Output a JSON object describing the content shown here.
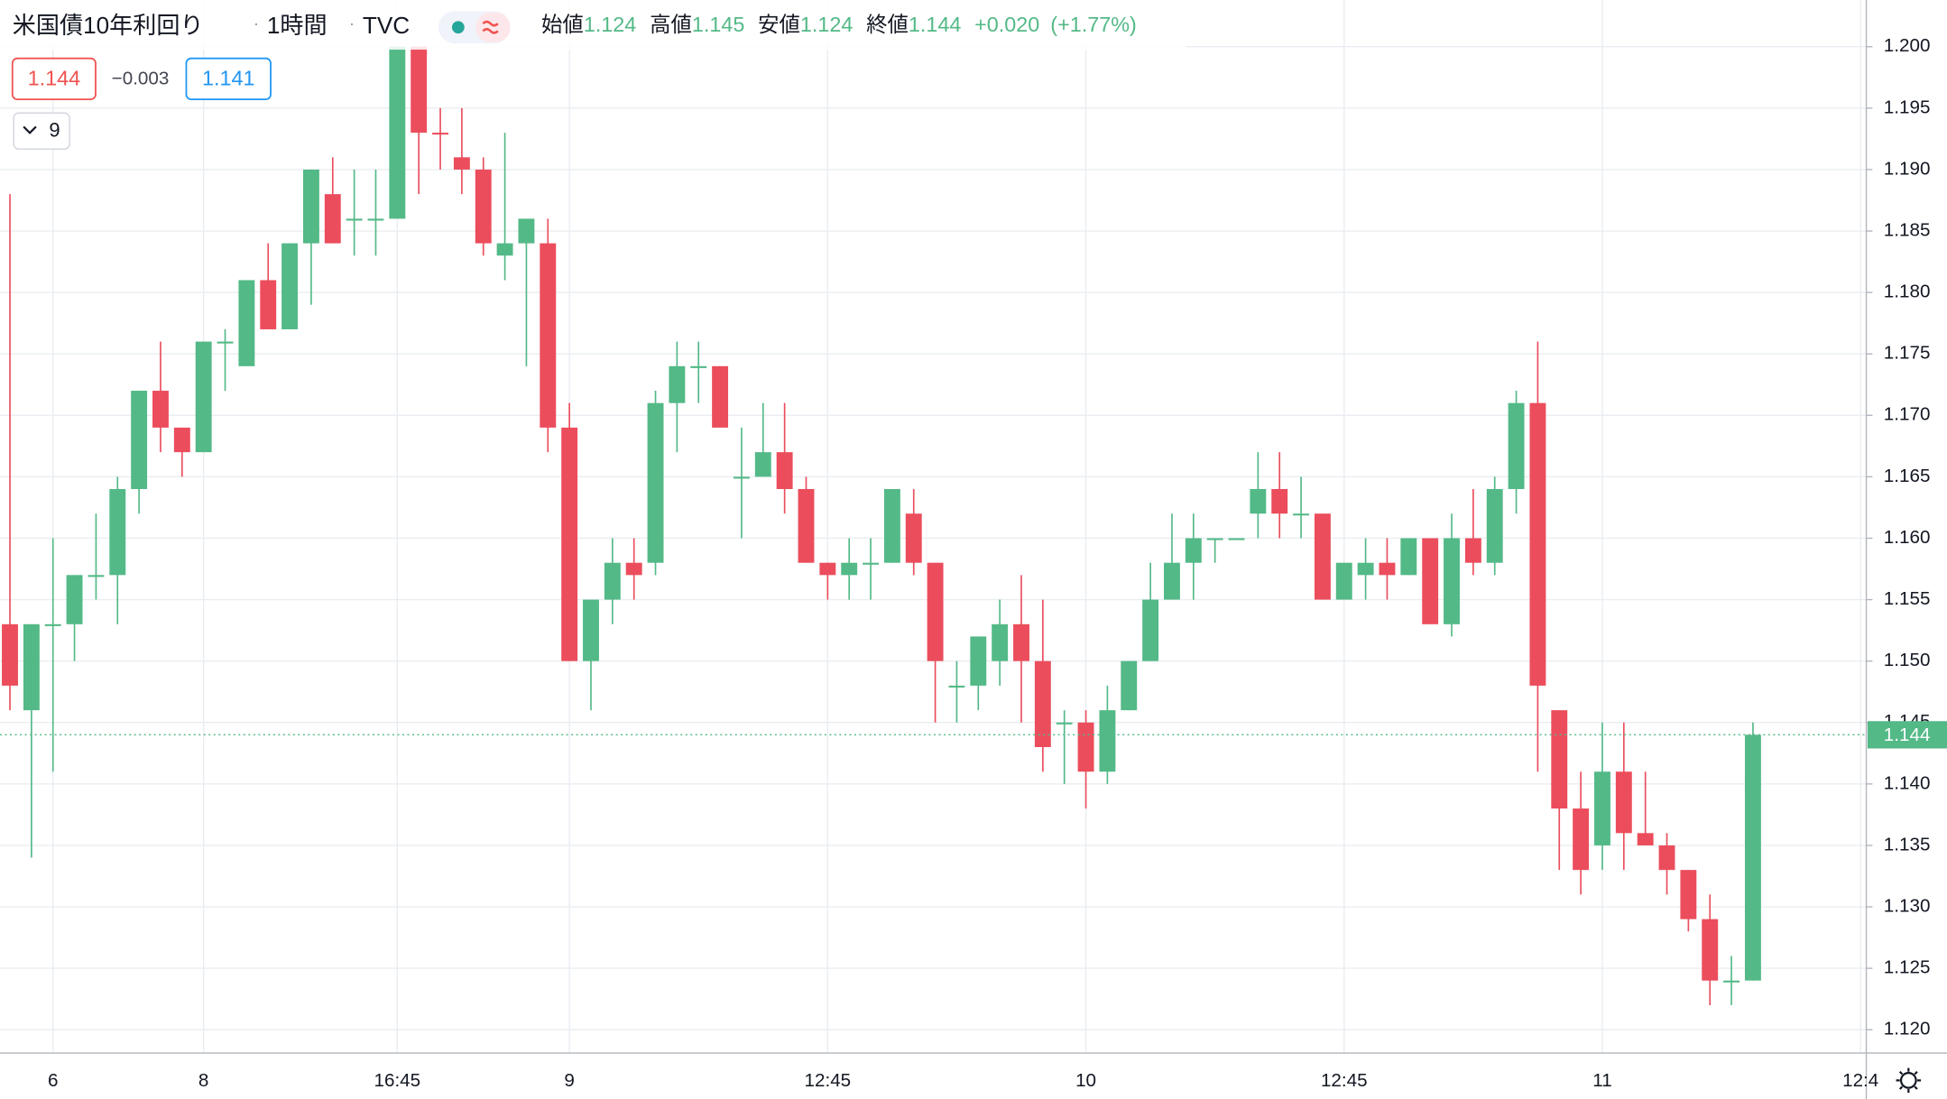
{
  "header": {
    "title": "米国債10年利回り",
    "separator": "·",
    "interval": "1時間",
    "source": "TVC",
    "open_label": "始値",
    "high_label": "高値",
    "low_label": "安値",
    "close_label": "終値",
    "change": "+0.020",
    "change_percent": "(+1.77%)",
    "bid": "1.144",
    "spread": "−0.003",
    "ask": "1.141",
    "indicators": 9
  },
  "chart_data": {
    "type": "candlestick",
    "up_color": "#53b987",
    "down_color": "#eb4d5c",
    "grid": true,
    "categories": [
      null,
      null,
      "6",
      null,
      null,
      null,
      null,
      null,
      null,
      "8",
      null,
      null,
      null,
      null,
      null,
      null,
      null,
      null,
      "16:45",
      null,
      null,
      null,
      null,
      null,
      null,
      null,
      "9",
      null,
      null,
      null,
      null,
      null,
      null,
      null,
      null,
      null,
      null,
      null,
      "12:45",
      null,
      null,
      null,
      null,
      null,
      null,
      null,
      null,
      null,
      null,
      null,
      "10",
      null,
      null,
      null,
      null,
      null,
      null,
      null,
      null,
      null,
      null,
      null,
      "12:45",
      null,
      null,
      null,
      null,
      null,
      null,
      null,
      null,
      null,
      null,
      null,
      "11",
      null,
      null,
      null,
      null,
      null,
      null,
      null,
      null,
      null,
      null,
      null,
      "12:4"
    ],
    "open": [
      1.153,
      1.146,
      1.153,
      1.153,
      1.157,
      1.157,
      1.164,
      1.172,
      1.169,
      1.167,
      1.176,
      1.174,
      1.181,
      1.177,
      1.184,
      1.188,
      1.186,
      1.186,
      1.186,
      1.2,
      1.193,
      1.191,
      1.19,
      1.183,
      1.184,
      1.184,
      1.169,
      1.15,
      1.155,
      1.158,
      1.158,
      1.171,
      1.174,
      1.174,
      1.165,
      1.165,
      1.167,
      1.164,
      1.158,
      1.157,
      1.158,
      1.158,
      1.162,
      1.158,
      1.148,
      1.148,
      1.15,
      1.153,
      1.15,
      1.145,
      1.145,
      1.141,
      1.146,
      1.15,
      1.155,
      1.158,
      1.16,
      1.16,
      1.162,
      1.164,
      1.162,
      1.162,
      1.155,
      1.157,
      1.158,
      1.157,
      1.16,
      1.153,
      1.16,
      1.158,
      1.164,
      1.171,
      1.146,
      1.138,
      1.135,
      1.141,
      1.136,
      1.135,
      1.133,
      1.129,
      1.124,
      1.124,
      null,
      null,
      null,
      null,
      null
    ],
    "high": [
      1.188,
      1.153,
      1.16,
      1.157,
      1.162,
      1.165,
      1.172,
      1.176,
      1.169,
      1.176,
      1.177,
      1.181,
      1.184,
      1.184,
      1.19,
      1.191,
      1.19,
      1.19,
      1.2,
      1.2,
      1.195,
      1.195,
      1.191,
      1.193,
      1.186,
      1.186,
      1.171,
      1.155,
      1.16,
      1.16,
      1.172,
      1.176,
      1.176,
      1.174,
      1.169,
      1.171,
      1.171,
      1.165,
      1.158,
      1.16,
      1.16,
      1.164,
      1.164,
      1.158,
      1.15,
      1.152,
      1.155,
      1.157,
      1.155,
      1.146,
      1.146,
      1.148,
      1.15,
      1.158,
      1.162,
      1.162,
      1.16,
      1.16,
      1.167,
      1.167,
      1.165,
      1.162,
      1.158,
      1.16,
      1.16,
      1.16,
      1.16,
      1.162,
      1.164,
      1.165,
      1.172,
      1.176,
      1.146,
      1.141,
      1.145,
      1.145,
      1.141,
      1.136,
      1.133,
      1.131,
      1.126,
      1.145,
      null,
      null,
      null,
      null,
      null
    ],
    "low": [
      1.146,
      1.134,
      1.141,
      1.15,
      1.155,
      1.153,
      1.162,
      1.167,
      1.165,
      1.167,
      1.172,
      1.174,
      1.177,
      1.177,
      1.179,
      1.184,
      1.183,
      1.183,
      1.186,
      1.188,
      1.19,
      1.188,
      1.183,
      1.181,
      1.174,
      1.167,
      1.15,
      1.146,
      1.153,
      1.155,
      1.157,
      1.167,
      1.171,
      1.169,
      1.16,
      1.165,
      1.162,
      1.158,
      1.155,
      1.155,
      1.155,
      1.158,
      1.157,
      1.145,
      1.145,
      1.146,
      1.148,
      1.145,
      1.141,
      1.14,
      1.138,
      1.14,
      1.146,
      1.15,
      1.155,
      1.155,
      1.158,
      1.16,
      1.16,
      1.16,
      1.16,
      1.155,
      1.155,
      1.155,
      1.155,
      1.157,
      1.153,
      1.152,
      1.157,
      1.157,
      1.162,
      1.141,
      1.133,
      1.131,
      1.133,
      1.133,
      1.135,
      1.131,
      1.128,
      1.122,
      1.122,
      1.124,
      null,
      null,
      null,
      null,
      null
    ],
    "close": [
      1.148,
      1.153,
      1.153,
      1.157,
      1.157,
      1.164,
      1.172,
      1.169,
      1.167,
      1.176,
      1.176,
      1.181,
      1.177,
      1.184,
      1.19,
      1.184,
      1.186,
      1.186,
      1.2,
      1.193,
      1.1929,
      1.19,
      1.184,
      1.184,
      1.186,
      1.169,
      1.15,
      1.155,
      1.158,
      1.157,
      1.171,
      1.174,
      1.174,
      1.169,
      1.165,
      1.167,
      1.164,
      1.158,
      1.157,
      1.158,
      1.158,
      1.164,
      1.158,
      1.15,
      1.148,
      1.152,
      1.153,
      1.15,
      1.143,
      1.145,
      1.141,
      1.146,
      1.15,
      1.155,
      1.158,
      1.16,
      1.16,
      1.16,
      1.164,
      1.162,
      1.162,
      1.155,
      1.158,
      1.158,
      1.157,
      1.16,
      1.153,
      1.16,
      1.158,
      1.164,
      1.171,
      1.148,
      1.138,
      1.133,
      1.141,
      1.136,
      1.135,
      1.133,
      1.129,
      1.124,
      1.124,
      1.144,
      null,
      null,
      null,
      null,
      null
    ],
    "ylim": [
      1.1181,
      1.2038
    ],
    "yticks": [
      {
        "value": 1.12,
        "label": "1.120"
      },
      1.125,
      {
        "value": 1.13,
        "label": "1.130"
      },
      1.135,
      {
        "value": 1.14,
        "label": "1.140"
      },
      1.145,
      {
        "value": 1.15,
        "label": "1.150"
      },
      1.155,
      {
        "value": 1.16,
        "label": "1.160"
      },
      1.165,
      {
        "value": 1.17,
        "label": "1.170"
      },
      1.175,
      {
        "value": 1.18,
        "label": "1.180"
      },
      1.185,
      {
        "value": 1.19,
        "label": "1.190"
      },
      1.195,
      {
        "value": 1.2,
        "label": "1.200"
      }
    ]
  }
}
